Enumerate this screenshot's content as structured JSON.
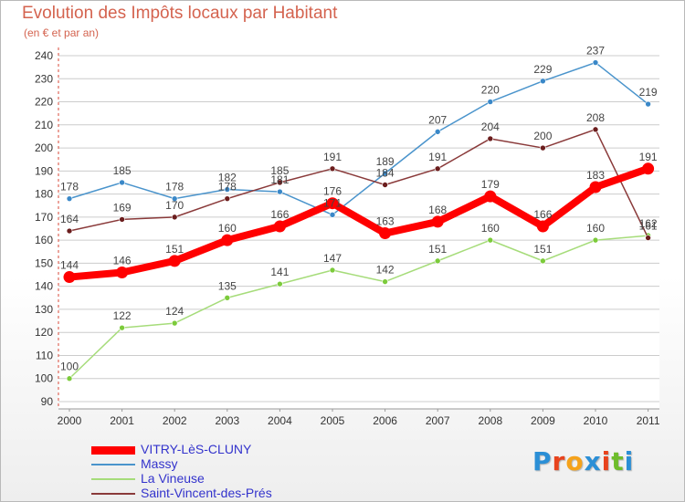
{
  "header": {
    "title": "Evolution des Impôts locaux par Habitant",
    "subtitle": "(en € et par an)"
  },
  "colors": {
    "title": "#d4634f",
    "grid": "#cccccc",
    "axis_text": "#333333",
    "legend_text": "#3333cc"
  },
  "brand": {
    "letters": [
      "P",
      "r",
      "o",
      "x",
      "i",
      "t",
      "i"
    ],
    "colors": [
      "#2b8fd6",
      "#e8431d",
      "#f5a21b",
      "#2b8fd6",
      "#e8431d",
      "#6ebd2b",
      "#2b8fd6"
    ]
  },
  "chart_data": {
    "type": "line",
    "title": "Evolution des Impôts locaux par Habitant",
    "subtitle": "(en € et par an)",
    "xlabel": "",
    "ylabel": "",
    "x": [
      "2000",
      "2001",
      "2002",
      "2003",
      "2004",
      "2005",
      "2006",
      "2007",
      "2008",
      "2009",
      "2010",
      "2011"
    ],
    "ylim": [
      90,
      240
    ],
    "yticks": [
      90,
      100,
      110,
      120,
      130,
      140,
      150,
      160,
      170,
      180,
      190,
      200,
      210,
      220,
      230,
      240
    ],
    "grid": "horizontal",
    "legend_position": "bottom-left",
    "series": [
      {
        "name": "Massy",
        "color": "#4a94cc",
        "point_color": "#3a88c8",
        "values": [
          178,
          185,
          178,
          182,
          181,
          171,
          189,
          207,
          220,
          229,
          237,
          219
        ],
        "labels": [
          "178",
          "185",
          "178",
          "182",
          "181",
          "171",
          "189",
          "207",
          "220",
          "229",
          "237",
          "219"
        ]
      },
      {
        "name": "La Vineuse",
        "color": "#a6dc7a",
        "point_color": "#7ccb3b",
        "values": [
          100,
          122,
          124,
          135,
          141,
          147,
          142,
          151,
          160,
          151,
          160,
          162
        ],
        "labels": [
          "100",
          "122",
          "124",
          "135",
          "141",
          "147",
          "142",
          "151",
          "160",
          "151",
          "160",
          "162"
        ]
      },
      {
        "name": "Saint-Vincent-des-Prés",
        "color": "#8a3a3a",
        "point_color": "#6b1d1d",
        "values": [
          164,
          169,
          170,
          178,
          185,
          191,
          184,
          191,
          204,
          200,
          208,
          161
        ],
        "labels": [
          "164",
          "169",
          "170",
          "178",
          "185",
          "191",
          "184",
          "191",
          "204",
          "200",
          "208",
          "161"
        ]
      },
      {
        "name": "VITRY-LèS-CLUNY",
        "color": "#ff0000",
        "point_color": "#ff0000",
        "values": [
          144,
          146,
          151,
          160,
          166,
          176,
          163,
          168,
          179,
          166,
          183,
          191
        ],
        "labels": [
          "144",
          "146",
          "151",
          "160",
          "166",
          "176",
          "163",
          "168",
          "179",
          "166",
          "183",
          "191"
        ]
      }
    ],
    "legend": [
      "VITRY-LèS-CLUNY",
      "Massy",
      "La Vineuse",
      "Saint-Vincent-des-Prés"
    ]
  }
}
